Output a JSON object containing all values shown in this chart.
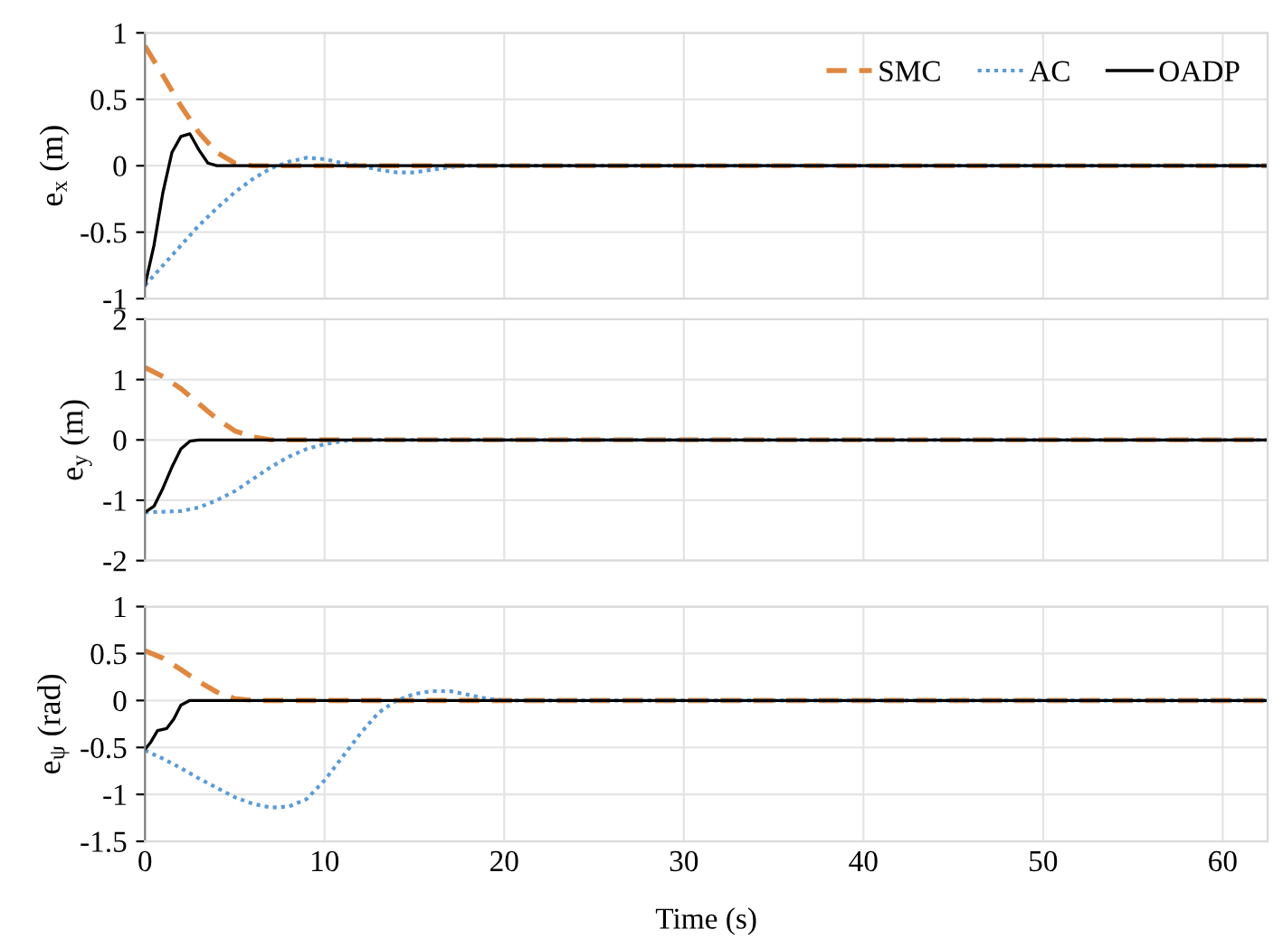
{
  "chart_data": [
    {
      "type": "line",
      "ylabel": "e$_{x}$ (m)",
      "xlim": [
        0,
        62.5
      ],
      "xticks": [
        0,
        10,
        20,
        30,
        40,
        50,
        60
      ],
      "ylim": [
        -1,
        1
      ],
      "yticks": [
        -1,
        -0.5,
        0,
        0.5,
        1
      ],
      "grid": true,
      "legend": "top right",
      "tick_labels": "y",
      "series": [
        {
          "name": "SMC",
          "color": "#e0873f",
          "line_style": "dashed",
          "x": [
            0,
            1,
            2,
            3,
            4,
            5,
            6,
            62.5
          ],
          "values": [
            0.9,
            0.68,
            0.45,
            0.25,
            0.1,
            0.02,
            0,
            0
          ]
        },
        {
          "name": "AC",
          "color": "#5b9bd5",
          "line_style": "dotted",
          "x": [
            0,
            1,
            2,
            3,
            4,
            5,
            6,
            7,
            8,
            9,
            10,
            11,
            12,
            13,
            14,
            15,
            16,
            17,
            18,
            62.5
          ],
          "values": [
            -0.9,
            -0.75,
            -0.6,
            -0.45,
            -0.32,
            -0.2,
            -0.1,
            -0.02,
            0.03,
            0.06,
            0.05,
            0.02,
            0,
            -0.03,
            -0.05,
            -0.05,
            -0.03,
            -0.01,
            0,
            0
          ]
        },
        {
          "name": "OADP",
          "color": "#000000",
          "line_style": "solid",
          "x": [
            0,
            0.5,
            1,
            1.5,
            2,
            2.5,
            3,
            3.5,
            4,
            62.5
          ],
          "values": [
            -0.9,
            -0.6,
            -0.2,
            0.1,
            0.22,
            0.24,
            0.12,
            0.02,
            0,
            0
          ]
        }
      ]
    },
    {
      "type": "line",
      "ylabel": "e$_{y}$ (m)",
      "xlim": [
        0,
        62.5
      ],
      "xticks": [
        0,
        10,
        20,
        30,
        40,
        50,
        60
      ],
      "ylim": [
        -2,
        2
      ],
      "yticks": [
        -2,
        -1,
        0,
        1,
        2
      ],
      "grid": true,
      "tick_labels": "y",
      "series": [
        {
          "color": "#e0873f",
          "line_style": "dashed",
          "x": [
            0,
            1,
            2,
            3,
            4,
            5,
            6,
            7,
            62.5
          ],
          "values": [
            1.2,
            1.05,
            0.85,
            0.6,
            0.35,
            0.15,
            0.05,
            0,
            0
          ]
        },
        {
          "color": "#5b9bd5",
          "line_style": "dotted",
          "x": [
            0,
            2,
            3,
            4,
            5,
            6,
            7,
            8,
            9,
            10,
            11,
            12,
            62.5
          ],
          "values": [
            -1.2,
            -1.18,
            -1.12,
            -1.0,
            -0.85,
            -0.65,
            -0.45,
            -0.28,
            -0.15,
            -0.07,
            -0.02,
            0,
            0
          ]
        },
        {
          "color": "#000000",
          "line_style": "solid",
          "x": [
            0,
            0.5,
            1,
            1.5,
            2,
            2.5,
            3,
            62.5
          ],
          "values": [
            -1.2,
            -1.1,
            -0.8,
            -0.45,
            -0.15,
            -0.02,
            0,
            0
          ]
        }
      ]
    },
    {
      "type": "line",
      "ylabel": "e$_{ψ}$ (rad)",
      "xlabel": "Time (s)",
      "xlim": [
        0,
        62.5
      ],
      "xticks": [
        0,
        10,
        20,
        30,
        40,
        50,
        60
      ],
      "ylim": [
        -1.5,
        1
      ],
      "yticks": [
        -1.5,
        -1,
        -0.5,
        0,
        0.5,
        1
      ],
      "grid": true,
      "series": [
        {
          "color": "#e0873f",
          "line_style": "dashed",
          "x": [
            0,
            1,
            2,
            3,
            4,
            5,
            6,
            62.5
          ],
          "values": [
            0.53,
            0.45,
            0.33,
            0.2,
            0.09,
            0.02,
            0,
            0
          ]
        },
        {
          "color": "#5b9bd5",
          "line_style": "dotted",
          "x": [
            0,
            1,
            2,
            3,
            4,
            5,
            6,
            7,
            8,
            9,
            10,
            11,
            12,
            13,
            14,
            15,
            16,
            17,
            18,
            19,
            20,
            62.5
          ],
          "values": [
            -0.53,
            -0.62,
            -0.72,
            -0.83,
            -0.93,
            -1.03,
            -1.1,
            -1.14,
            -1.13,
            -1.05,
            -0.85,
            -0.6,
            -0.35,
            -0.13,
            0,
            0.07,
            0.1,
            0.1,
            0.06,
            0.02,
            0,
            0
          ]
        },
        {
          "color": "#000000",
          "line_style": "solid",
          "x": [
            0,
            0.3,
            0.7,
            1.2,
            1.6,
            2,
            2.5,
            62.5
          ],
          "values": [
            -0.52,
            -0.45,
            -0.32,
            -0.3,
            -0.2,
            -0.05,
            0,
            0
          ]
        }
      ]
    }
  ]
}
